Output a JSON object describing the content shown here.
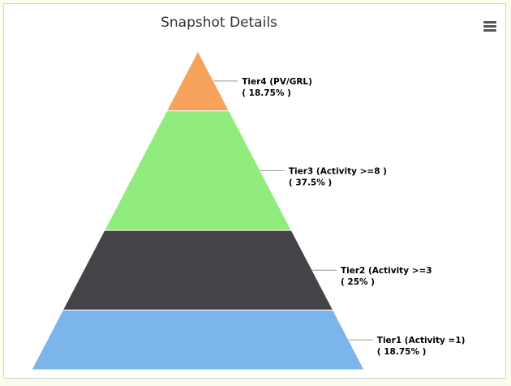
{
  "chart_data": {
    "type": "pyramid",
    "title": "Snapshot Details",
    "segments": [
      {
        "name": "Tier4 (PV/GRL)",
        "percent_label": "( 18.75% )",
        "value": 18.75,
        "color": "#f7a35c"
      },
      {
        "name": "Tier3 (Activity >=8 )",
        "percent_label": "( 37.5% )",
        "value": 37.5,
        "color": "#90ed7d"
      },
      {
        "name": "Tier2 (Activity >=3",
        "percent_label": "( 25% )",
        "value": 25,
        "color": "#434348"
      },
      {
        "name": "Tier1 (Activity =1)",
        "percent_label": "( 18.75% )",
        "value": 18.75,
        "color": "#7cb5ec"
      }
    ]
  },
  "toolbar": {
    "menu_icon": "hamburger-menu-icon"
  }
}
